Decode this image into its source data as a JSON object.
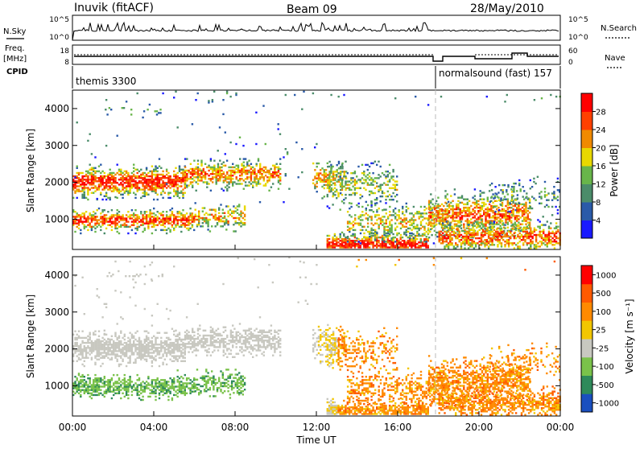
{
  "header": {
    "station": "Inuvik (fitACF)",
    "beam": "Beam 09",
    "date": "28/May/2010"
  },
  "nsky_panel": {
    "left_label": "N.Sky",
    "left_ticks": [
      "10^5",
      "10^0"
    ],
    "right_label": "N.Search",
    "right_ticks": [
      "10^5",
      "10^0"
    ]
  },
  "freq_panel": {
    "left_label_1": "Freq.",
    "left_label_2": "[MHz]",
    "left_ticks": [
      "18",
      "8"
    ],
    "right_label": "Nave",
    "right_ticks": [
      "60",
      "0"
    ]
  },
  "cpid_panel": {
    "label": "CPID",
    "mode_1": "themis 3300",
    "mode_2": "normalsound (fast) 157"
  },
  "colors": {
    "power_scale": [
      "#1a1aff",
      "#2a5aa8",
      "#4b8c6a",
      "#68b54a",
      "#e8d800",
      "#f08a00",
      "#ff4000",
      "#ff0000"
    ],
    "velocity_scale": [
      "#1a4fbf",
      "#2e8a5a",
      "#7ac24a",
      "#c8c8c0",
      "#f2c600",
      "#ff8a00",
      "#ff5a00",
      "#ff0000"
    ]
  },
  "chart_data": [
    {
      "type": "heatmap",
      "title": "",
      "ylabel": "Slant Range [km]",
      "xlabel": "",
      "yticks": [
        "1000",
        "2000",
        "3000",
        "4000"
      ],
      "ylim": [
        180,
        4500
      ],
      "colorbar_label": "Power [dB]",
      "colorbar_ticks": [
        "4",
        "8",
        "12",
        "16",
        "20",
        "24",
        "28"
      ],
      "colorbar_range": [
        0,
        30
      ]
    },
    {
      "type": "heatmap",
      "title": "",
      "ylabel": "Slant Range [km]",
      "xlabel": "Time UT",
      "xticks": [
        "00:00",
        "04:00",
        "08:00",
        "12:00",
        "16:00",
        "20:00",
        "00:00"
      ],
      "xlim_hours": [
        0,
        24
      ],
      "yticks": [
        "1000",
        "2000",
        "3000",
        "4000"
      ],
      "ylim": [
        180,
        4500
      ],
      "colorbar_label": "Velocity [m s⁻¹]",
      "colorbar_ticks": [
        "1000",
        "500",
        "100",
        "25",
        "-25",
        "-100",
        "-500",
        "-1000"
      ]
    }
  ]
}
